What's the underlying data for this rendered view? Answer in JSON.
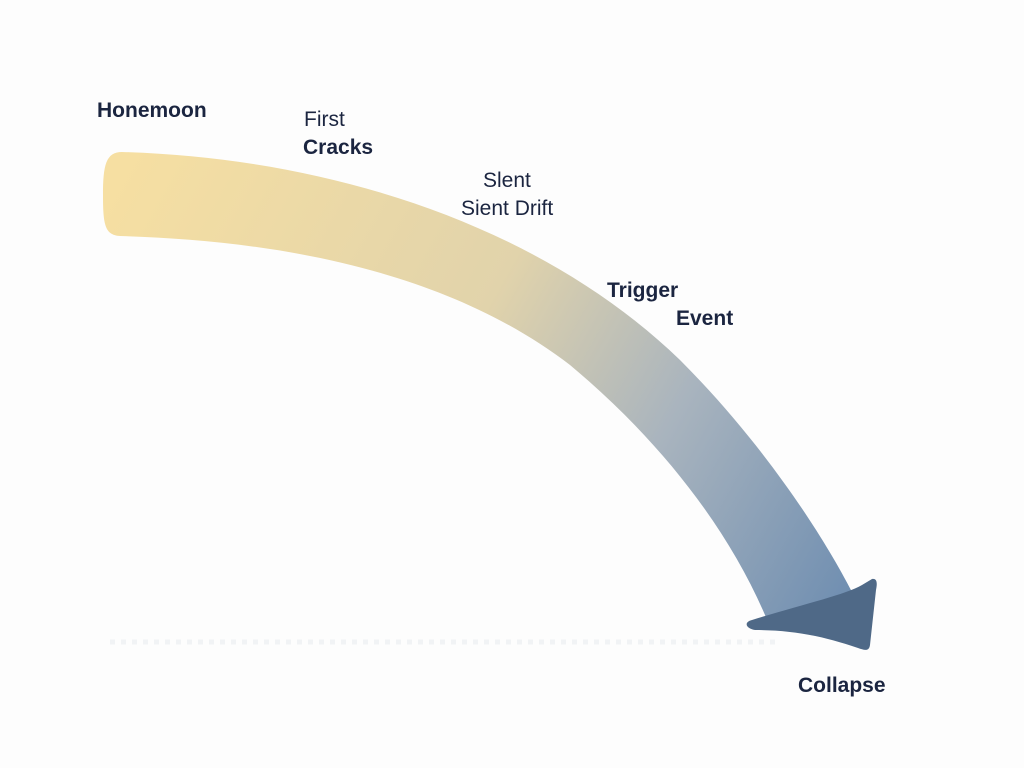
{
  "stages": {
    "honeymoon": "Honemoon",
    "first_cracks_line1": "First",
    "first_cracks_line2": "Cracks",
    "silent_drift_line1": "Slent",
    "silent_drift_line2": "Sient Drift",
    "trigger_line1": "Trigger",
    "trigger_line2": "Event",
    "collapse": "Collapse"
  },
  "colors": {
    "start": "#f5dfa3",
    "middle": "#d9cfae",
    "end": "#6f8db0",
    "arrowhead": "#4d6685",
    "text": "#1b2540"
  }
}
